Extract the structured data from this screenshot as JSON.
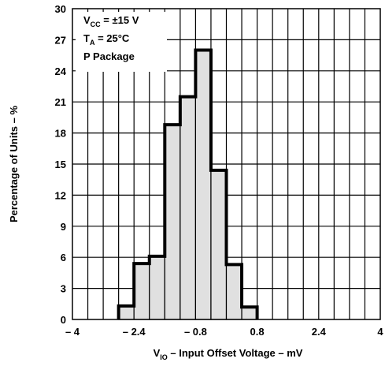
{
  "chart_data": {
    "type": "bar",
    "title": "",
    "xlabel": {
      "main": "V",
      "sub": "IO",
      "rest": " – Input Offset Voltage – mV"
    },
    "ylabel": "Percentage of Units – %",
    "xlim": [
      -4,
      4
    ],
    "ylim": [
      0,
      30
    ],
    "x_ticks": [
      -4,
      -2.4,
      -0.8,
      0.8,
      2.4,
      4
    ],
    "x_tick_labels": [
      "– 4",
      "– 2.4",
      "– 0.8",
      "0.8",
      "2.4",
      "4"
    ],
    "y_ticks": [
      0,
      3,
      6,
      9,
      12,
      15,
      18,
      21,
      24,
      27,
      30
    ],
    "y_tick_labels": [
      "0",
      "3",
      "6",
      "9",
      "12",
      "15",
      "18",
      "21",
      "24",
      "27",
      "30"
    ],
    "grid": true,
    "bin_width": 0.4,
    "bins": [
      {
        "start": -2.8,
        "end": -2.4,
        "value": 1.3
      },
      {
        "start": -2.4,
        "end": -2.0,
        "value": 5.4
      },
      {
        "start": -2.0,
        "end": -1.6,
        "value": 6.1
      },
      {
        "start": -1.6,
        "end": -1.2,
        "value": 18.8
      },
      {
        "start": -1.2,
        "end": -0.8,
        "value": 21.5
      },
      {
        "start": -0.8,
        "end": -0.4,
        "value": 26.0
      },
      {
        "start": -0.4,
        "end": 0.0,
        "value": 14.4
      },
      {
        "start": 0.0,
        "end": 0.4,
        "value": 5.3
      },
      {
        "start": 0.4,
        "end": 0.8,
        "value": 1.2
      }
    ],
    "annotations": [
      {
        "main": "V",
        "sub": "CC",
        "rest": " = ±15 V"
      },
      {
        "main": "T",
        "sub": "A",
        "rest": " = 25°C"
      },
      {
        "main": "P Package",
        "sub": "",
        "rest": ""
      }
    ],
    "colors": {
      "fill": "#e0e0e0",
      "outline": "#000000",
      "grid": "#000000"
    }
  }
}
